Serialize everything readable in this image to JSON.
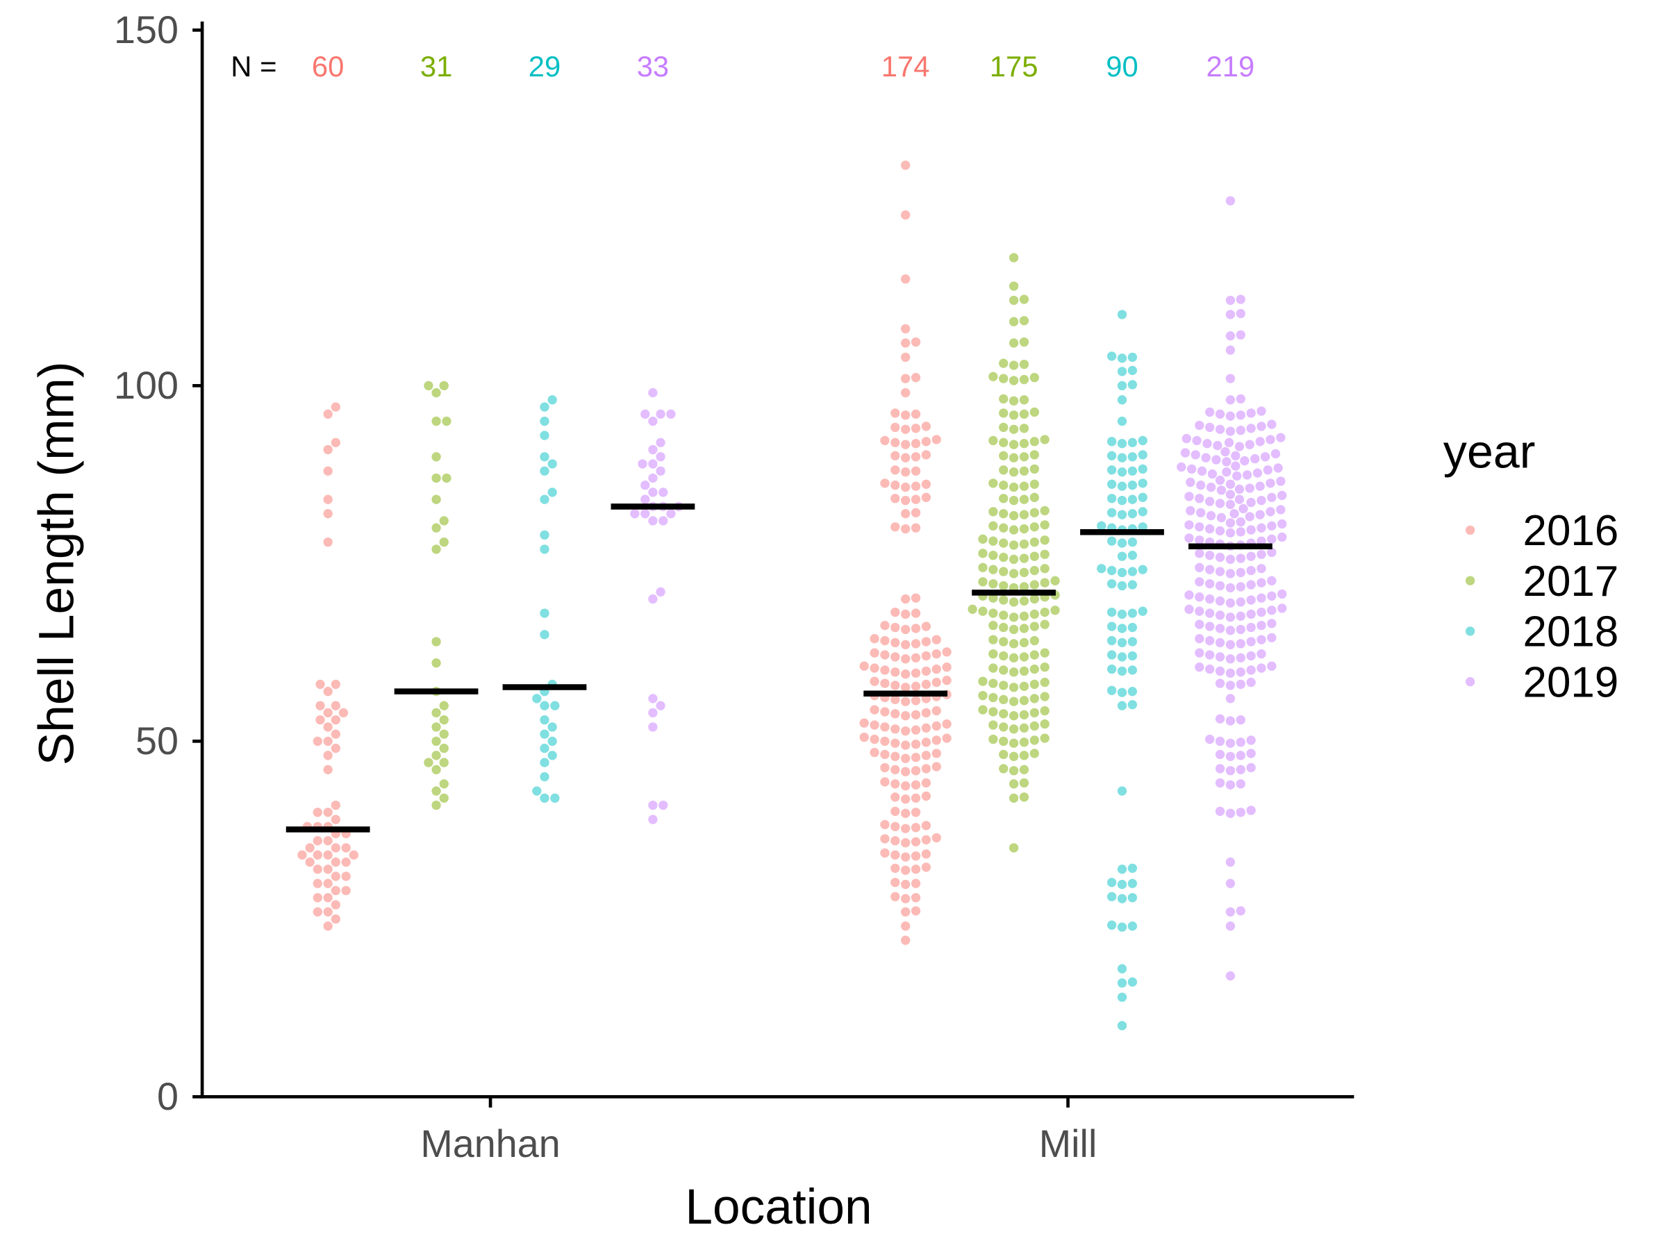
{
  "chart_data": {
    "type": "scatter",
    "subtype": "beeswarm-with-median",
    "xlabel": "Location",
    "ylabel": "Shell Length (mm)",
    "ylim": [
      0,
      150
    ],
    "yticks": [
      0,
      50,
      100,
      150
    ],
    "categories": [
      "Manhan",
      "Mill"
    ],
    "grid": false,
    "n_prefix": "N =",
    "legend": {
      "title": "year",
      "position": "right",
      "entries": [
        "2016",
        "2017",
        "2018",
        "2019"
      ]
    },
    "colors": {
      "2016": "#F8766D",
      "2017": "#7CAE00",
      "2018": "#00BFC4",
      "2019": "#C77CFF"
    },
    "groups": [
      {
        "location": "Manhan",
        "year": "2016",
        "n": "60",
        "median": 37.6,
        "values": [
          97,
          96,
          92,
          91,
          88,
          84,
          82,
          78,
          58,
          58,
          57,
          55,
          55,
          54,
          54,
          53,
          53,
          52,
          51,
          50,
          50,
          49,
          48,
          46,
          41,
          40,
          40,
          39,
          38,
          38,
          38,
          37,
          37,
          36,
          36,
          35,
          35,
          35,
          34,
          34,
          34,
          34,
          33,
          33,
          33,
          32,
          32,
          31,
          31,
          30,
          30,
          29,
          29,
          28,
          28,
          27,
          26,
          26,
          25,
          24
        ]
      },
      {
        "location": "Manhan",
        "year": "2017",
        "n": "31",
        "median": 57.0,
        "values": [
          100,
          100,
          99,
          95,
          95,
          90,
          87,
          87,
          84,
          81,
          80,
          78,
          77,
          64,
          61,
          57,
          55,
          54,
          53,
          52,
          51,
          50,
          49,
          48,
          47,
          47,
          46,
          44,
          43,
          42,
          41
        ]
      },
      {
        "location": "Manhan",
        "year": "2018",
        "n": "29",
        "median": 57.6,
        "values": [
          98,
          97,
          95,
          93,
          90,
          89,
          88,
          85,
          84,
          79,
          77,
          68,
          65,
          58,
          57,
          56,
          55,
          55,
          53,
          52,
          51,
          50,
          49,
          48,
          47,
          45,
          43,
          42,
          42
        ]
      },
      {
        "location": "Manhan",
        "year": "2019",
        "n": "33",
        "median": 83.0,
        "values": [
          99,
          96,
          96,
          96,
          95,
          92,
          91,
          90,
          89,
          89,
          88,
          87,
          86,
          85,
          85,
          84,
          83,
          83,
          83,
          82,
          82,
          82,
          81,
          81,
          71,
          70,
          56,
          55,
          54,
          52,
          41,
          41,
          39
        ]
      },
      {
        "location": "Mill",
        "year": "2016",
        "n": "174",
        "median": 56.7,
        "value_counts": [
          [
            131,
            1
          ],
          [
            124,
            1
          ],
          [
            115,
            1
          ],
          [
            108,
            1
          ],
          [
            106,
            2
          ],
          [
            104,
            1
          ],
          [
            101,
            2
          ],
          [
            99,
            1
          ],
          [
            96,
            3
          ],
          [
            94,
            4
          ],
          [
            92,
            6
          ],
          [
            90,
            4
          ],
          [
            88,
            3
          ],
          [
            86,
            5
          ],
          [
            84,
            4
          ],
          [
            82,
            2
          ],
          [
            80,
            3
          ],
          [
            70,
            2
          ],
          [
            68,
            3
          ],
          [
            66,
            5
          ],
          [
            64,
            7
          ],
          [
            62,
            8
          ],
          [
            60,
            9
          ],
          [
            58,
            8
          ],
          [
            56,
            8
          ],
          [
            54,
            7
          ],
          [
            52,
            9
          ],
          [
            50,
            9
          ],
          [
            48,
            7
          ],
          [
            46,
            6
          ],
          [
            44,
            5
          ],
          [
            42,
            4
          ],
          [
            40,
            3
          ],
          [
            38,
            5
          ],
          [
            36,
            6
          ],
          [
            34,
            5
          ],
          [
            32,
            4
          ],
          [
            30,
            3
          ],
          [
            28,
            3
          ],
          [
            26,
            2
          ],
          [
            24,
            1
          ],
          [
            22,
            1
          ]
        ]
      },
      {
        "location": "Mill",
        "year": "2017",
        "n": "175",
        "median": 70.9,
        "value_counts": [
          [
            118,
            1
          ],
          [
            114,
            1
          ],
          [
            112,
            2
          ],
          [
            109,
            2
          ],
          [
            106,
            2
          ],
          [
            103,
            3
          ],
          [
            101,
            5
          ],
          [
            98,
            3
          ],
          [
            96,
            4
          ],
          [
            94,
            3
          ],
          [
            92,
            6
          ],
          [
            90,
            4
          ],
          [
            88,
            4
          ],
          [
            86,
            5
          ],
          [
            84,
            4
          ],
          [
            82,
            6
          ],
          [
            80,
            6
          ],
          [
            78,
            7
          ],
          [
            76,
            7
          ],
          [
            74,
            7
          ],
          [
            72,
            8
          ],
          [
            70,
            8
          ],
          [
            68,
            9
          ],
          [
            66,
            6
          ],
          [
            64,
            5
          ],
          [
            62,
            6
          ],
          [
            60,
            6
          ],
          [
            58,
            7
          ],
          [
            56,
            7
          ],
          [
            54,
            7
          ],
          [
            52,
            6
          ],
          [
            50,
            6
          ],
          [
            48,
            4
          ],
          [
            46,
            3
          ],
          [
            44,
            2
          ],
          [
            42,
            2
          ],
          [
            35,
            1
          ]
        ]
      },
      {
        "location": "Mill",
        "year": "2018",
        "n": "90",
        "median": 79.4,
        "value_counts": [
          [
            110,
            1
          ],
          [
            104,
            3
          ],
          [
            102,
            2
          ],
          [
            100,
            2
          ],
          [
            98,
            1
          ],
          [
            95,
            1
          ],
          [
            92,
            4
          ],
          [
            90,
            4
          ],
          [
            88,
            4
          ],
          [
            86,
            4
          ],
          [
            84,
            4
          ],
          [
            82,
            4
          ],
          [
            80,
            5
          ],
          [
            78,
            3
          ],
          [
            76,
            2
          ],
          [
            74,
            5
          ],
          [
            72,
            3
          ],
          [
            68,
            4
          ],
          [
            66,
            3
          ],
          [
            64,
            3
          ],
          [
            62,
            3
          ],
          [
            60,
            3
          ],
          [
            57,
            3
          ],
          [
            55,
            2
          ],
          [
            43,
            1
          ],
          [
            32,
            2
          ],
          [
            30,
            3
          ],
          [
            28,
            3
          ],
          [
            24,
            3
          ],
          [
            18,
            1
          ],
          [
            16,
            2
          ],
          [
            14,
            1
          ],
          [
            10,
            1
          ]
        ]
      },
      {
        "location": "Mill",
        "year": "2019",
        "n": "219",
        "median": 77.4,
        "value_counts": [
          [
            126,
            1
          ],
          [
            112,
            2
          ],
          [
            110,
            2
          ],
          [
            107,
            2
          ],
          [
            105,
            1
          ],
          [
            101,
            1
          ],
          [
            98,
            2
          ],
          [
            96,
            6
          ],
          [
            94,
            8
          ],
          [
            92,
            10
          ],
          [
            90,
            11
          ],
          [
            88,
            11
          ],
          [
            86,
            11
          ],
          [
            84,
            11
          ],
          [
            82,
            10
          ],
          [
            80,
            12
          ],
          [
            78,
            10
          ],
          [
            76,
            8
          ],
          [
            74,
            7
          ],
          [
            72,
            8
          ],
          [
            70,
            10
          ],
          [
            68,
            10
          ],
          [
            66,
            8
          ],
          [
            64,
            8
          ],
          [
            62,
            7
          ],
          [
            60,
            8
          ],
          [
            58,
            4
          ],
          [
            56,
            1
          ],
          [
            53,
            3
          ],
          [
            50,
            5
          ],
          [
            48,
            4
          ],
          [
            46,
            4
          ],
          [
            44,
            3
          ],
          [
            40,
            4
          ],
          [
            33,
            1
          ],
          [
            30,
            1
          ],
          [
            26,
            2
          ],
          [
            24,
            1
          ],
          [
            17,
            1
          ]
        ]
      }
    ]
  }
}
